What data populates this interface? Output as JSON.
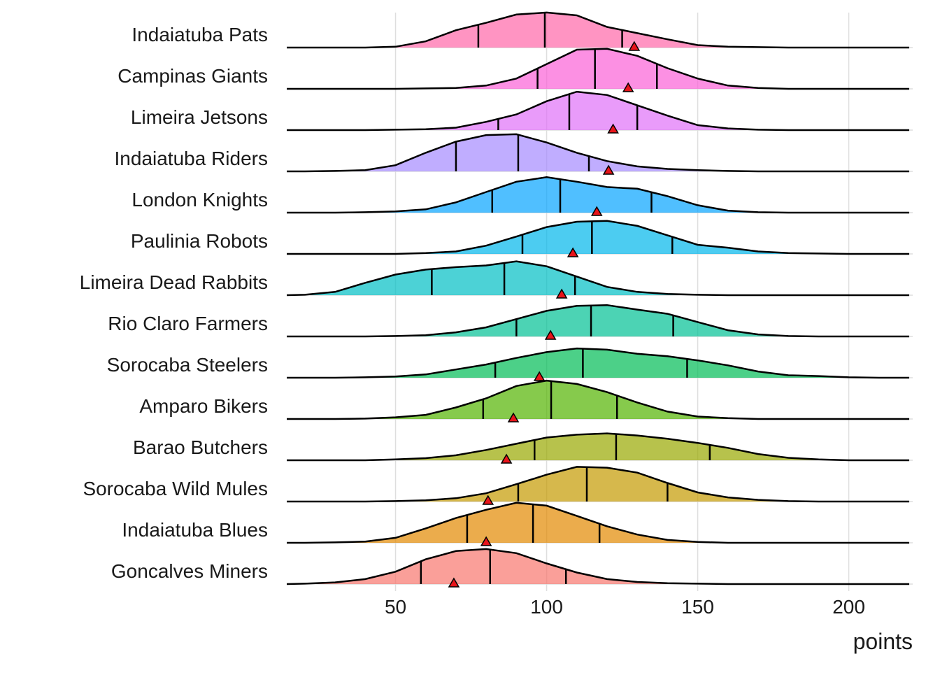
{
  "chart_data": {
    "type": "ridgeline",
    "x_label": "points",
    "xlim": [
      14,
      220
    ],
    "xticks": [
      50,
      100,
      150,
      200
    ],
    "grid": true,
    "x": [
      20,
      30,
      40,
      50,
      60,
      70,
      80,
      90,
      100,
      110,
      120,
      130,
      140,
      150,
      160,
      170,
      180,
      190,
      200,
      210
    ],
    "series": [
      {
        "name": "Indaiatuba Pats",
        "color": "#FF66A8",
        "quartiles": [
          77.4,
          99.4,
          125
        ],
        "mean": 129,
        "density": [
          0,
          0,
          0,
          0.02,
          0.15,
          0.42,
          0.6,
          0.8,
          0.85,
          0.78,
          0.5,
          0.35,
          0.2,
          0.06,
          0.02,
          0.01,
          0,
          0,
          0,
          0
        ]
      },
      {
        "name": "Campinas Giants",
        "color": "#FB61D7",
        "quartiles": [
          97,
          116,
          136.5
        ],
        "mean": 127,
        "density": [
          0,
          0,
          0,
          0,
          0.01,
          0.02,
          0.08,
          0.25,
          0.6,
          0.95,
          0.97,
          0.8,
          0.5,
          0.25,
          0.08,
          0.02,
          0,
          0,
          0,
          0
        ]
      },
      {
        "name": "Limeira Jetsons",
        "color": "#DF70F8",
        "quartiles": [
          84,
          107.5,
          130
        ],
        "mean": 122,
        "density": [
          0,
          0,
          0,
          0.01,
          0.02,
          0.06,
          0.2,
          0.38,
          0.7,
          0.93,
          0.85,
          0.6,
          0.35,
          0.12,
          0.04,
          0.01,
          0,
          0,
          0,
          0
        ]
      },
      {
        "name": "Indaiatuba Riders",
        "color": "#A58AFF",
        "quartiles": [
          70,
          90.6,
          114
        ],
        "mean": 120.5,
        "density": [
          0,
          0.01,
          0.03,
          0.15,
          0.45,
          0.72,
          0.88,
          0.9,
          0.7,
          0.45,
          0.25,
          0.12,
          0.06,
          0.03,
          0.01,
          0,
          0,
          0,
          0,
          0
        ]
      },
      {
        "name": "London Knights",
        "color": "#06A4FF",
        "quartiles": [
          82,
          104.5,
          134.7
        ],
        "mean": 116.6,
        "density": [
          0,
          0,
          0.01,
          0.03,
          0.08,
          0.25,
          0.5,
          0.75,
          0.86,
          0.75,
          0.62,
          0.58,
          0.4,
          0.18,
          0.05,
          0.01,
          0,
          0,
          0,
          0
        ]
      },
      {
        "name": "Paulinia Robots",
        "color": "#00B6EB",
        "quartiles": [
          92,
          115,
          141.6
        ],
        "mean": 108.7,
        "density": [
          0,
          0,
          0,
          0,
          0.02,
          0.06,
          0.2,
          0.42,
          0.65,
          0.78,
          0.8,
          0.68,
          0.45,
          0.22,
          0.15,
          0.06,
          0.02,
          0.01,
          0,
          0
        ]
      },
      {
        "name": "Limeira Dead Rabbits",
        "color": "#00BFC4",
        "quartiles": [
          62,
          86,
          109.4
        ],
        "mean": 105,
        "density": [
          0.01,
          0.08,
          0.3,
          0.5,
          0.62,
          0.68,
          0.72,
          0.82,
          0.7,
          0.45,
          0.2,
          0.08,
          0.03,
          0.01,
          0,
          0,
          0,
          0,
          0,
          0
        ]
      },
      {
        "name": "Rio Claro Farmers",
        "color": "#00C094",
        "quartiles": [
          90,
          114.7,
          141.9
        ],
        "mean": 101.3,
        "density": [
          0,
          0,
          0,
          0.01,
          0.03,
          0.1,
          0.22,
          0.42,
          0.62,
          0.74,
          0.76,
          0.65,
          0.55,
          0.35,
          0.15,
          0.05,
          0.01,
          0,
          0,
          0
        ]
      },
      {
        "name": "Sorocaba Steelers",
        "color": "#00BC56",
        "quartiles": [
          83,
          112,
          146.5
        ],
        "mean": 97.6,
        "density": [
          0,
          0,
          0.01,
          0.03,
          0.08,
          0.2,
          0.32,
          0.48,
          0.62,
          0.71,
          0.68,
          0.58,
          0.52,
          0.42,
          0.3,
          0.15,
          0.06,
          0.04,
          0.01,
          0
        ]
      },
      {
        "name": "Amparo Bikers",
        "color": "#53B400",
        "quartiles": [
          79,
          101.5,
          123.3
        ],
        "mean": 89,
        "density": [
          0,
          0,
          0.01,
          0.04,
          0.1,
          0.28,
          0.5,
          0.8,
          0.93,
          0.85,
          0.65,
          0.4,
          0.18,
          0.06,
          0.02,
          0,
          0,
          0,
          0,
          0
        ]
      },
      {
        "name": "Barao Butchers",
        "color": "#99A800",
        "quartiles": [
          96,
          123,
          154
        ],
        "mean": 86.7,
        "density": [
          0,
          0,
          0,
          0.02,
          0.05,
          0.12,
          0.25,
          0.4,
          0.55,
          0.62,
          0.65,
          0.6,
          0.52,
          0.42,
          0.3,
          0.15,
          0.06,
          0.02,
          0,
          0
        ]
      },
      {
        "name": "Sorocaba Wild Mules",
        "color": "#C49A00",
        "quartiles": [
          90.6,
          113.3,
          140
        ],
        "mean": 80.6,
        "density": [
          0,
          0,
          0,
          0.01,
          0.03,
          0.08,
          0.2,
          0.42,
          0.65,
          0.84,
          0.82,
          0.7,
          0.45,
          0.22,
          0.1,
          0.04,
          0.01,
          0,
          0,
          0
        ]
      },
      {
        "name": "Indaiatuba Blues",
        "color": "#E38900",
        "quartiles": [
          73.7,
          95.5,
          117.5
        ],
        "mean": 80,
        "density": [
          0,
          0.01,
          0.03,
          0.12,
          0.35,
          0.6,
          0.8,
          0.97,
          0.9,
          0.65,
          0.4,
          0.2,
          0.07,
          0.02,
          0,
          0,
          0,
          0,
          0,
          0
        ]
      },
      {
        "name": "Goncalves Miners",
        "color": "#F8766D",
        "quartiles": [
          58.4,
          81.3,
          106.4
        ],
        "mean": 69.3,
        "density": [
          0.01,
          0.04,
          0.12,
          0.3,
          0.6,
          0.8,
          0.85,
          0.75,
          0.5,
          0.28,
          0.12,
          0.05,
          0.02,
          0.01,
          0,
          0,
          0,
          0,
          0,
          0
        ]
      }
    ]
  }
}
